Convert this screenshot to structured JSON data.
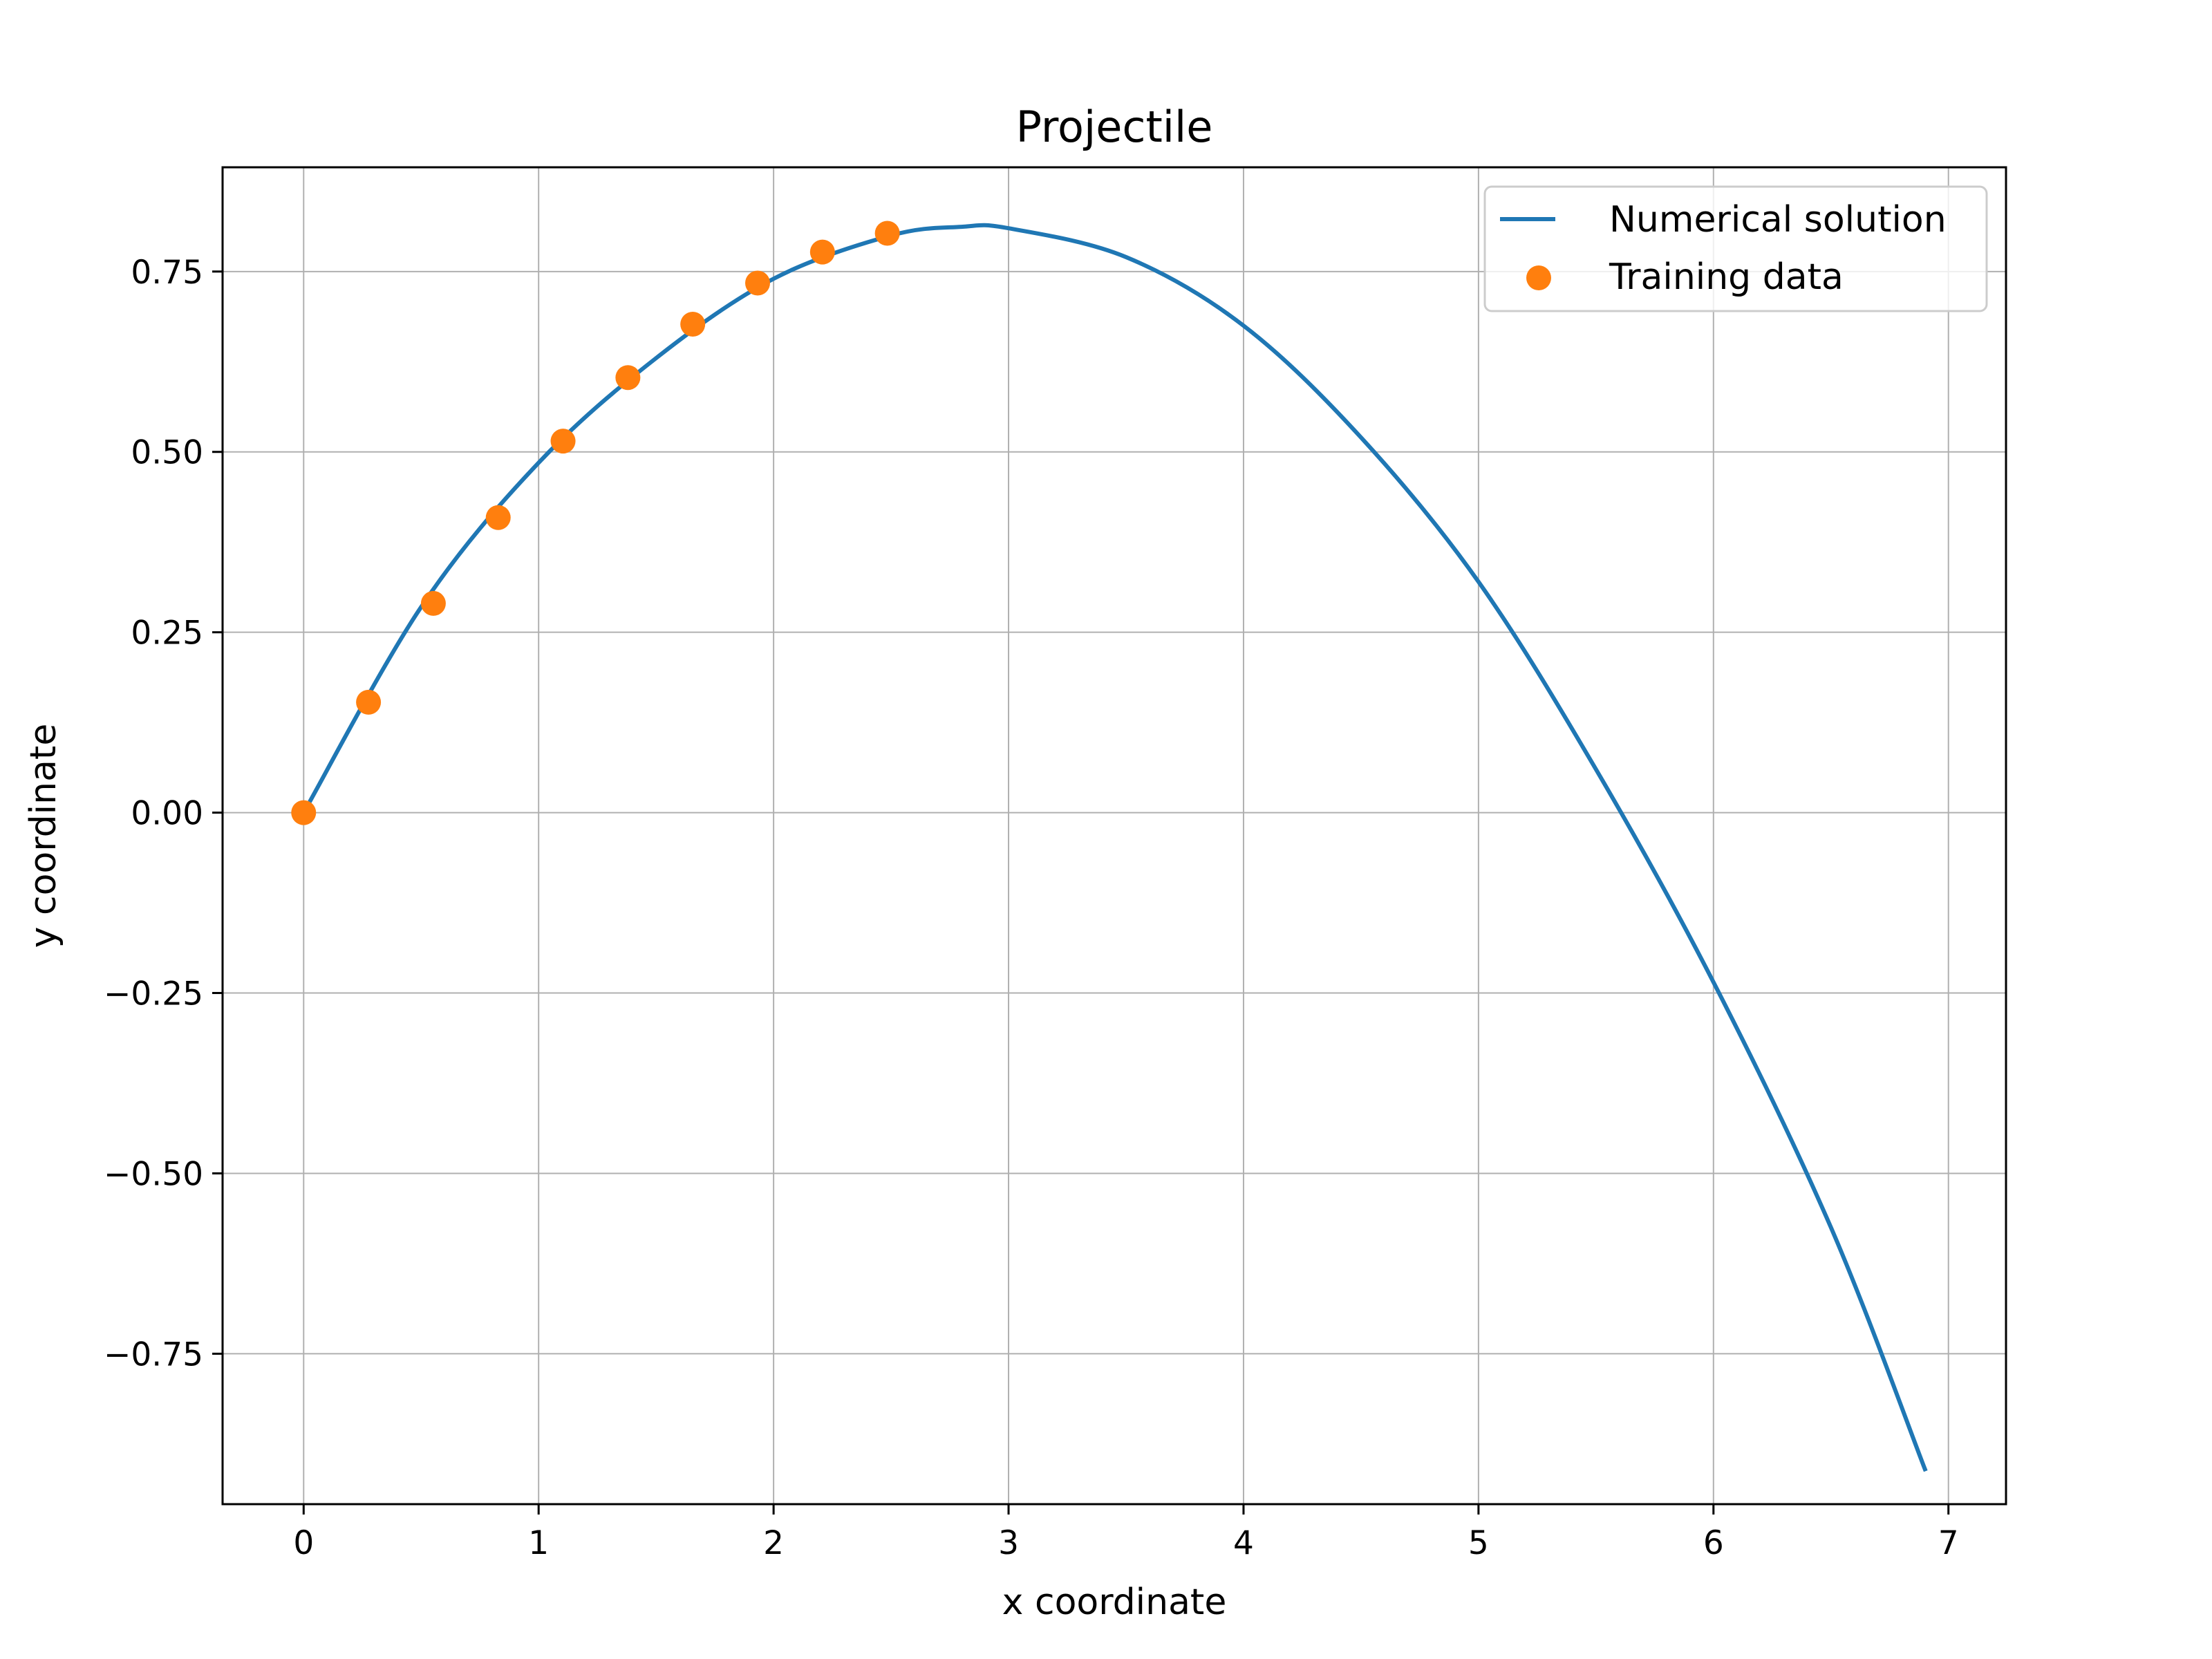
{
  "chart_data": {
    "type": "line",
    "title": "Projectile",
    "xlabel": "x coordinate",
    "ylabel": "y coordinate",
    "xlim": [
      -0.345,
      7.245
    ],
    "ylim": [
      -0.9585,
      0.8945
    ],
    "xticks": [
      0,
      1,
      2,
      3,
      4,
      5,
      6,
      7
    ],
    "xtick_labels": [
      "0",
      "1",
      "2",
      "3",
      "4",
      "5",
      "6",
      "7"
    ],
    "yticks": [
      0.75,
      0.5,
      0.25,
      0,
      -0.25,
      -0.5,
      -0.75
    ],
    "ytick_labels": [
      "0.75",
      "0.50",
      "0.25",
      "0.00",
      "−0.25",
      "−0.50",
      "−0.75"
    ],
    "grid": true,
    "legend_position": "top-right",
    "colors": {
      "line": "#1f77b4",
      "scatter": "#ff7f0e",
      "grid": "#b0b0b0",
      "axes": "#000000"
    },
    "series": [
      {
        "name": "Numerical solution",
        "kind": "line",
        "x": [
          0,
          0.5,
          1.0,
          1.5,
          2.0,
          2.5,
          2.8,
          3.0,
          3.5,
          4.0,
          4.5,
          5.0,
          5.5,
          6.0,
          6.5,
          6.9
        ],
        "y": [
          0,
          0.285,
          0.485,
          0.63,
          0.74,
          0.8,
          0.812,
          0.81,
          0.77,
          0.675,
          0.52,
          0.32,
          0.06,
          -0.235,
          -0.575,
          -0.91
        ]
      },
      {
        "name": "Training data",
        "kind": "scatter",
        "x": [
          0,
          0.276,
          0.552,
          0.828,
          1.104,
          1.38,
          1.656,
          1.932,
          2.208,
          2.484
        ],
        "y": [
          0,
          0.153,
          0.29,
          0.409,
          0.515,
          0.603,
          0.677,
          0.734,
          0.777,
          0.803
        ]
      }
    ]
  }
}
